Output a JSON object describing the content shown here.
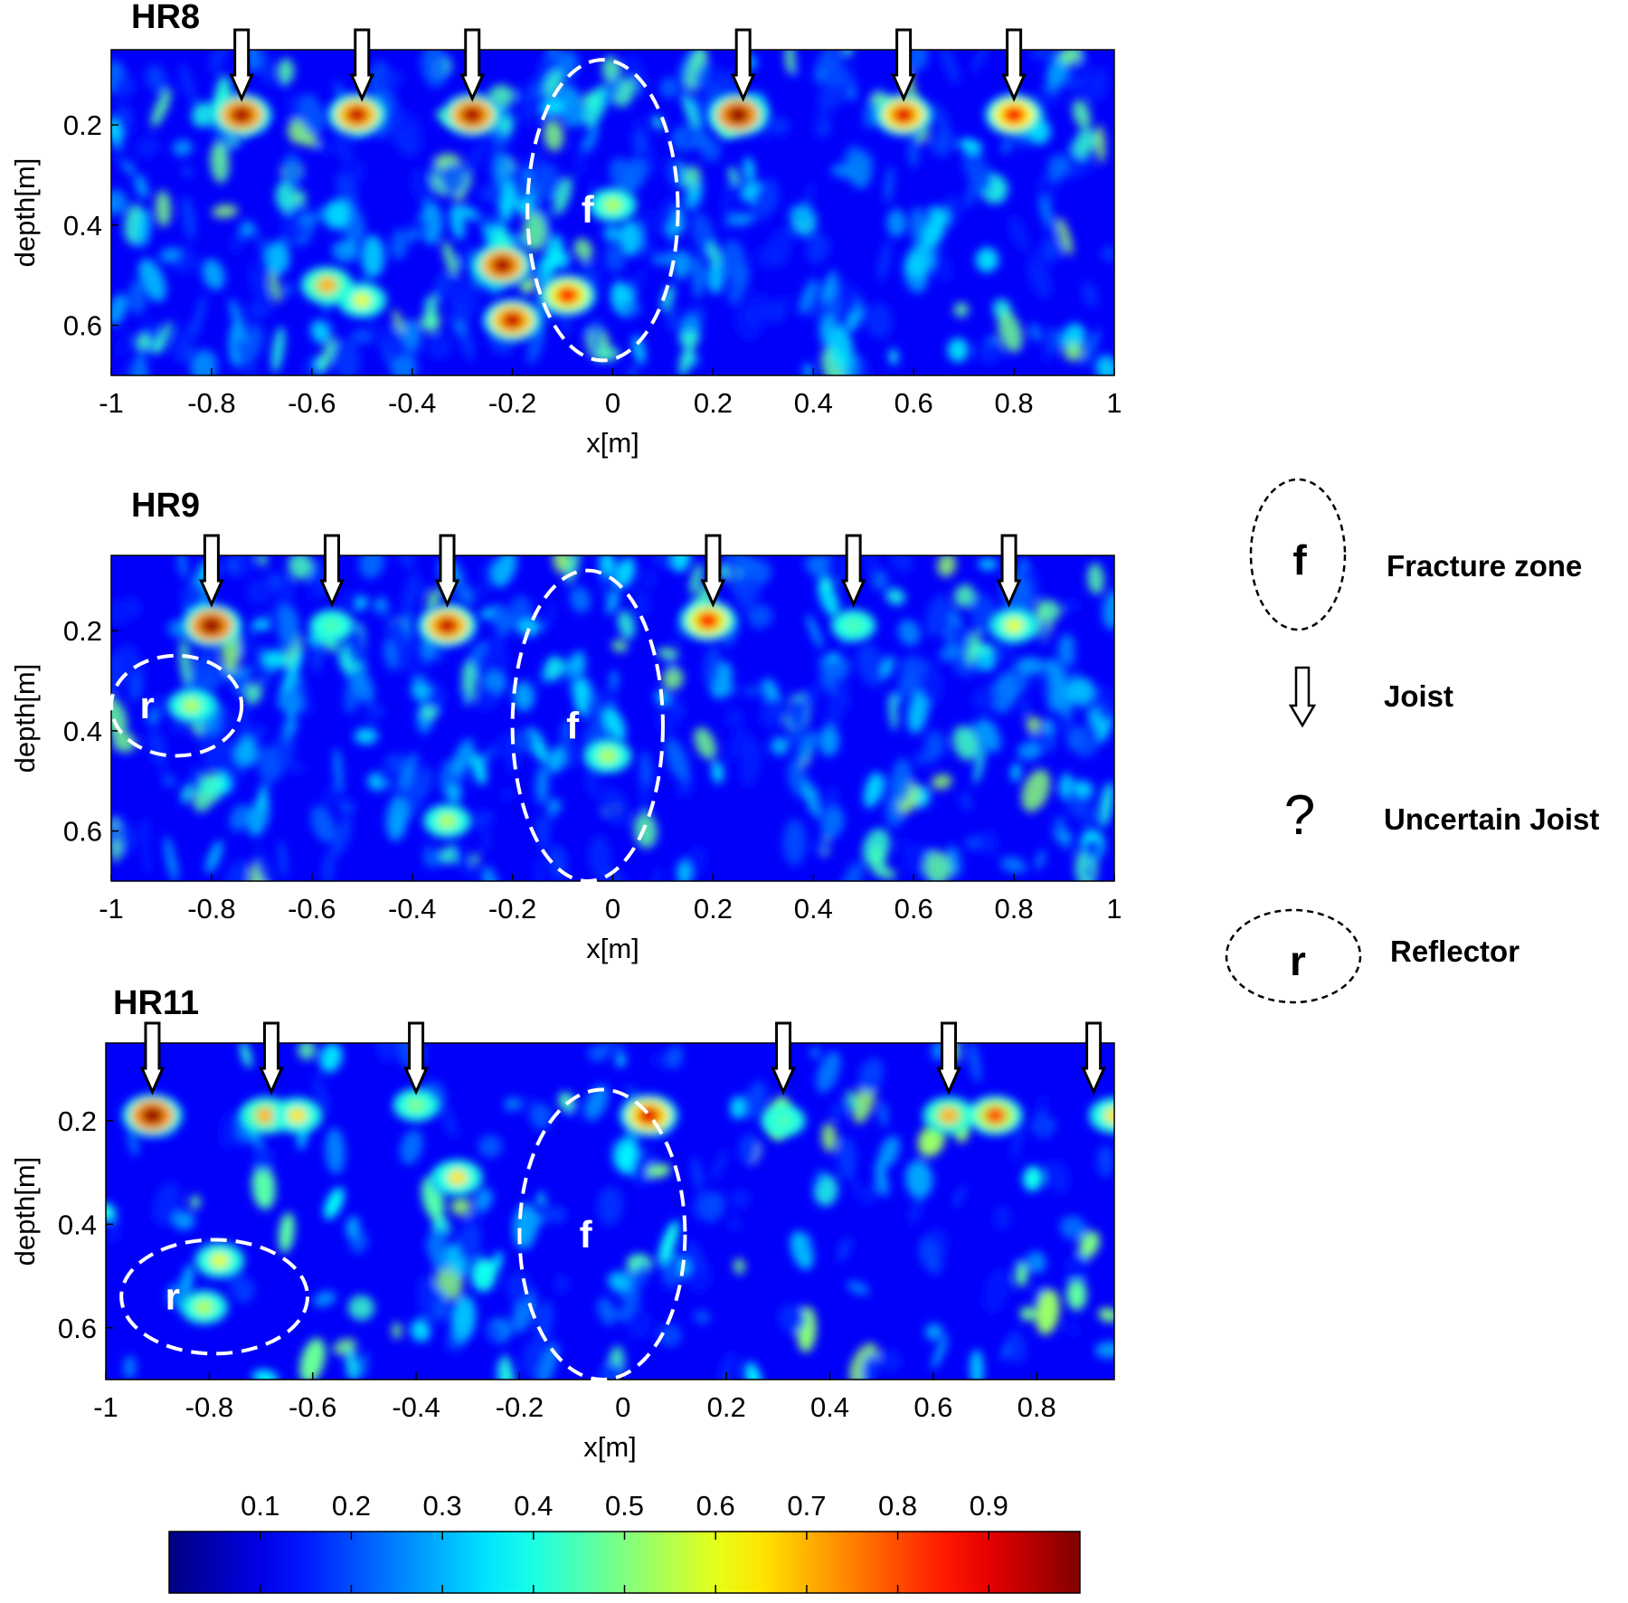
{
  "chart_data": [
    {
      "type": "heatmap",
      "title": "HR8",
      "xlabel": "x[m]",
      "ylabel": "depth[m]",
      "xlim": [
        -1,
        1
      ],
      "ylim": [
        0.7,
        0.05
      ],
      "xticks": [
        "-1",
        "-0.8",
        "-0.6",
        "-0.4",
        "-0.2",
        "0",
        "0.2",
        "0.4",
        "0.6",
        "0.8",
        "1"
      ],
      "yticks": [
        "0.2",
        "0.4",
        "0.6"
      ],
      "joist_x": [
        -0.74,
        -0.5,
        -0.28,
        0.26,
        0.58,
        0.8
      ],
      "uncertain_joist_x": [],
      "annotations": [
        {
          "label": "f",
          "kind": "fracture-zone",
          "center": [
            -0.02,
            0.37
          ],
          "radii": [
            0.15,
            0.3
          ]
        }
      ],
      "hotspots": [
        {
          "x": -0.74,
          "depth": 0.18,
          "value": 0.95
        },
        {
          "x": -0.51,
          "depth": 0.18,
          "value": 0.92
        },
        {
          "x": -0.28,
          "depth": 0.18,
          "value": 0.95
        },
        {
          "x": 0.25,
          "depth": 0.18,
          "value": 0.97
        },
        {
          "x": 0.58,
          "depth": 0.18,
          "value": 0.9
        },
        {
          "x": 0.8,
          "depth": 0.18,
          "value": 0.88
        },
        {
          "x": -0.22,
          "depth": 0.48,
          "value": 0.95
        },
        {
          "x": -0.2,
          "depth": 0.59,
          "value": 0.92
        },
        {
          "x": -0.09,
          "depth": 0.54,
          "value": 0.85
        },
        {
          "x": 0.0,
          "depth": 0.36,
          "value": 0.55
        },
        {
          "x": -0.57,
          "depth": 0.52,
          "value": 0.7
        },
        {
          "x": -0.5,
          "depth": 0.55,
          "value": 0.6
        }
      ]
    },
    {
      "type": "heatmap",
      "title": "HR9",
      "xlabel": "x[m]",
      "ylabel": "depth[m]",
      "xlim": [
        -1,
        1
      ],
      "ylim": [
        0.7,
        0.05
      ],
      "xticks": [
        "-1",
        "-0.8",
        "-0.6",
        "-0.4",
        "-0.2",
        "0",
        "0.2",
        "0.4",
        "0.6",
        "0.8",
        "1"
      ],
      "yticks": [
        "0.2",
        "0.4",
        "0.6"
      ],
      "joist_x": [
        -0.8,
        -0.56,
        -0.33,
        0.2,
        0.48,
        0.79
      ],
      "uncertain_joist_x": [],
      "annotations": [
        {
          "label": "f",
          "kind": "fracture-zone",
          "center": [
            -0.05,
            0.39
          ],
          "radii": [
            0.15,
            0.31
          ]
        },
        {
          "label": "r",
          "kind": "reflector",
          "center": [
            -0.87,
            0.35
          ],
          "radii": [
            0.13,
            0.1
          ]
        }
      ],
      "hotspots": [
        {
          "x": -0.8,
          "depth": 0.19,
          "value": 0.97
        },
        {
          "x": -0.56,
          "depth": 0.19,
          "value": 0.45
        },
        {
          "x": -0.33,
          "depth": 0.19,
          "value": 0.92
        },
        {
          "x": 0.19,
          "depth": 0.18,
          "value": 0.85
        },
        {
          "x": 0.48,
          "depth": 0.19,
          "value": 0.45
        },
        {
          "x": 0.8,
          "depth": 0.19,
          "value": 0.6
        },
        {
          "x": -0.84,
          "depth": 0.35,
          "value": 0.55
        },
        {
          "x": -0.01,
          "depth": 0.45,
          "value": 0.55
        },
        {
          "x": -0.33,
          "depth": 0.58,
          "value": 0.55
        }
      ]
    },
    {
      "type": "heatmap",
      "title": "HR11",
      "xlabel": "x[m]",
      "ylabel": "depth[m]",
      "xlim": [
        -1,
        0.95
      ],
      "ylim": [
        0.7,
        0.05
      ],
      "xticks": [
        "-1",
        "-0.8",
        "-0.6",
        "-0.4",
        "-0.2",
        "0",
        "0.2",
        "0.4",
        "0.6",
        "0.8"
      ],
      "yticks": [
        "0.2",
        "0.4",
        "0.6"
      ],
      "joist_x": [
        -0.91,
        -0.68,
        -0.4,
        0.31,
        0.63,
        0.91
      ],
      "uncertain_joist_x": [],
      "annotations": [
        {
          "label": "f",
          "kind": "fracture-zone",
          "center": [
            -0.04,
            0.42
          ],
          "radii": [
            0.16,
            0.28
          ]
        },
        {
          "label": "r",
          "kind": "reflector",
          "center": [
            -0.79,
            0.54
          ],
          "radii": [
            0.18,
            0.11
          ]
        }
      ],
      "hotspots": [
        {
          "x": -0.91,
          "depth": 0.19,
          "value": 0.97
        },
        {
          "x": -0.69,
          "depth": 0.19,
          "value": 0.7
        },
        {
          "x": -0.63,
          "depth": 0.19,
          "value": 0.65
        },
        {
          "x": -0.4,
          "depth": 0.17,
          "value": 0.5
        },
        {
          "x": -0.32,
          "depth": 0.31,
          "value": 0.65
        },
        {
          "x": 0.05,
          "depth": 0.19,
          "value": 0.9
        },
        {
          "x": 0.31,
          "depth": 0.2,
          "value": 0.45
        },
        {
          "x": 0.63,
          "depth": 0.19,
          "value": 0.7
        },
        {
          "x": 0.72,
          "depth": 0.19,
          "value": 0.8
        },
        {
          "x": 0.95,
          "depth": 0.19,
          "value": 0.65
        },
        {
          "x": -0.78,
          "depth": 0.47,
          "value": 0.6
        },
        {
          "x": -0.81,
          "depth": 0.56,
          "value": 0.55
        }
      ]
    }
  ],
  "colorbar": {
    "range": [
      0,
      1
    ],
    "ticks": [
      "0.1",
      "0.2",
      "0.3",
      "0.4",
      "0.5",
      "0.6",
      "0.7",
      "0.8",
      "0.9"
    ],
    "colormap": "jet"
  },
  "legend": [
    {
      "symbol": "f",
      "label": "Fracture zone"
    },
    {
      "symbol": "arrow",
      "label": "Joist"
    },
    {
      "symbol": "?",
      "label": "Uncertain Joist"
    },
    {
      "symbol": "r",
      "label": "Reflector"
    }
  ]
}
